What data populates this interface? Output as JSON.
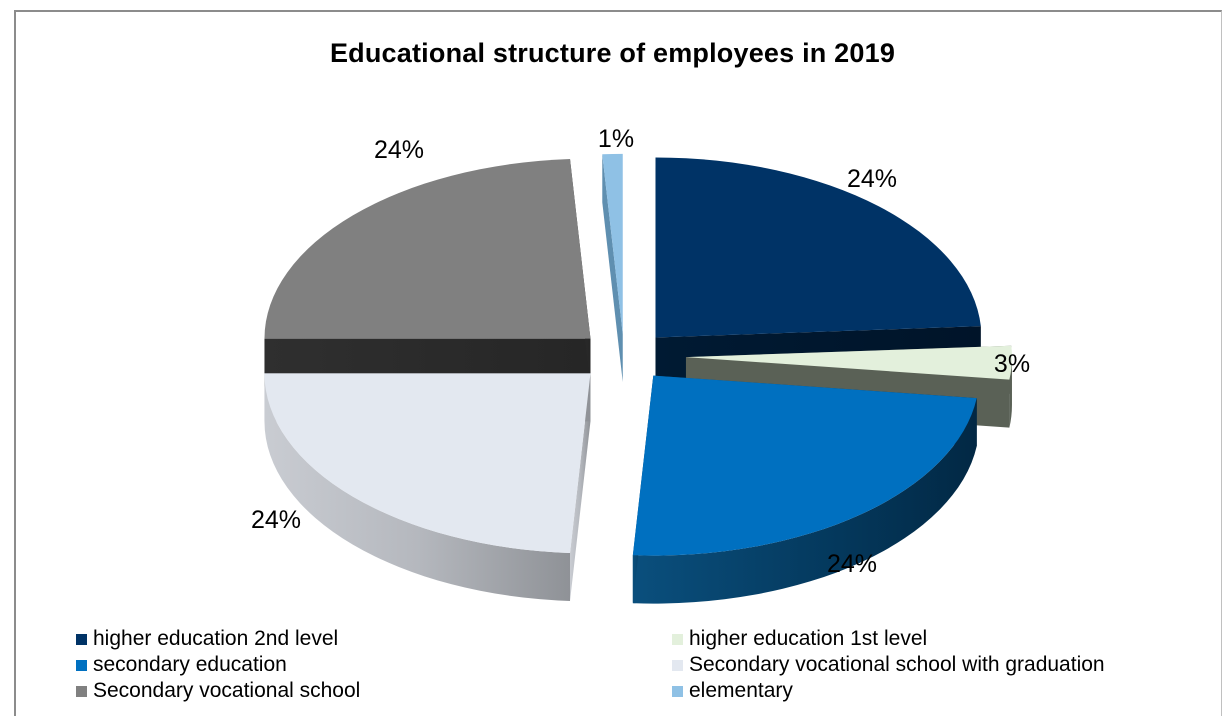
{
  "chart_data": {
    "type": "pie",
    "title": "Educational structure of employees in 2019",
    "slices": [
      {
        "name": "higher education 2nd level",
        "value": 24,
        "label": "24%",
        "color": "#003366"
      },
      {
        "name": "higher education 1st level",
        "value": 3,
        "label": "3%",
        "color": "#e3f0dc"
      },
      {
        "name": "secondary education",
        "value": 24,
        "label": "24%",
        "color": "#0070c0"
      },
      {
        "name": "Secondary vocational school with graduation",
        "value": 24,
        "label": "24%",
        "color": "#e3e8f0"
      },
      {
        "name": "Secondary vocational school",
        "value": 24,
        "label": "24%",
        "color": "#808080"
      },
      {
        "name": "elementary",
        "value": 1,
        "label": "1%",
        "color": "#8fc1e5"
      }
    ],
    "style": "3d-exploded",
    "legend_position": "bottom"
  }
}
